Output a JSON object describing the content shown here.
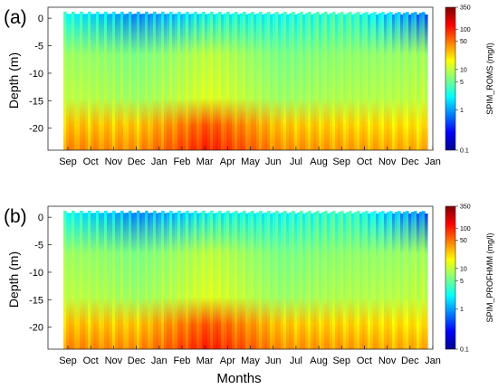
{
  "colors": {
    "colormap": [
      "#00008f",
      "#0000ff",
      "#0080ff",
      "#00ffff",
      "#80ff80",
      "#ffff00",
      "#ff8000",
      "#ff0000",
      "#800000"
    ],
    "axis": "#262626"
  },
  "figure": {
    "xlabel": "Months"
  },
  "chart_data": [
    {
      "type": "heatmap",
      "panel_label": "(a)",
      "ylabel": "Depth (m)",
      "colorbar_label": "SPIM_ROMS (mg/l)",
      "x_ticks": [
        "Sep",
        "Oct",
        "Nov",
        "Dec",
        "Jan",
        "Feb",
        "Mar",
        "Apr",
        "May",
        "Jun",
        "Jul",
        "Aug",
        "Sep",
        "Oct",
        "Nov",
        "Dec",
        "Jan"
      ],
      "y_ticks": [
        0,
        -5,
        -10,
        -15,
        -20
      ],
      "ylim": [
        -24,
        2
      ],
      "colorbar_ticks": [
        350,
        100,
        50,
        10,
        5,
        1,
        0.1
      ],
      "colorbar_scale": "log",
      "colorbar_range": [
        0.1,
        350
      ],
      "surface_concentration_mg_l": [
        3,
        1,
        2.5,
        3,
        3.5,
        0.8
      ],
      "mid_depth_concentration_mg_l": [
        8,
        6,
        10,
        6,
        7,
        8
      ],
      "bottom_concentration_mg_l": [
        30,
        28,
        70,
        28,
        25,
        22
      ]
    },
    {
      "type": "heatmap",
      "panel_label": "(b)",
      "ylabel": "Depth (m)",
      "colorbar_label": "SPIM_PROFHMM (mg/l)",
      "x_ticks": [
        "Sep",
        "Oct",
        "Nov",
        "Dec",
        "Jan",
        "Feb",
        "Mar",
        "Apr",
        "May",
        "Jun",
        "Jul",
        "Aug",
        "Sep",
        "Oct",
        "Nov",
        "Dec",
        "Jan"
      ],
      "y_ticks": [
        0,
        -5,
        -10,
        -15,
        -20
      ],
      "ylim": [
        -24,
        2
      ],
      "colorbar_ticks": [
        350,
        100,
        50,
        10,
        5,
        1,
        0.1
      ],
      "colorbar_scale": "log",
      "colorbar_range": [
        0.1,
        350
      ],
      "surface_concentration_mg_l": [
        3,
        1,
        2.5,
        3,
        3.5,
        0.8
      ],
      "mid_depth_concentration_mg_l": [
        8,
        6,
        10,
        6,
        7,
        8
      ],
      "bottom_concentration_mg_l": [
        30,
        28,
        70,
        28,
        25,
        22
      ]
    }
  ]
}
